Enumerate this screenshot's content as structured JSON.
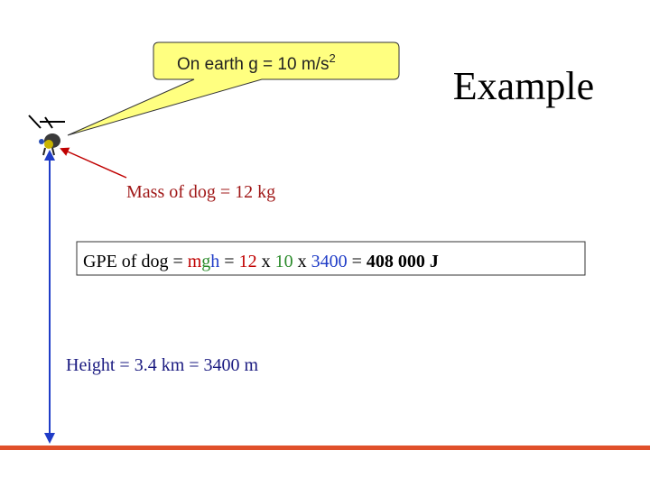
{
  "callout": {
    "text": "On earth g = 10 m/s",
    "superscript": "2"
  },
  "title": "Example",
  "mass_label": "Mass of dog = 12 kg",
  "gpe_line": {
    "segments": [
      "GPE of dog = ",
      "m",
      "g",
      "h",
      " = ",
      "12",
      " x ",
      "10",
      " x ",
      "3400",
      " = ",
      "408 000 J"
    ]
  },
  "height_label": "Height = 3.4 km = 3400 m"
}
